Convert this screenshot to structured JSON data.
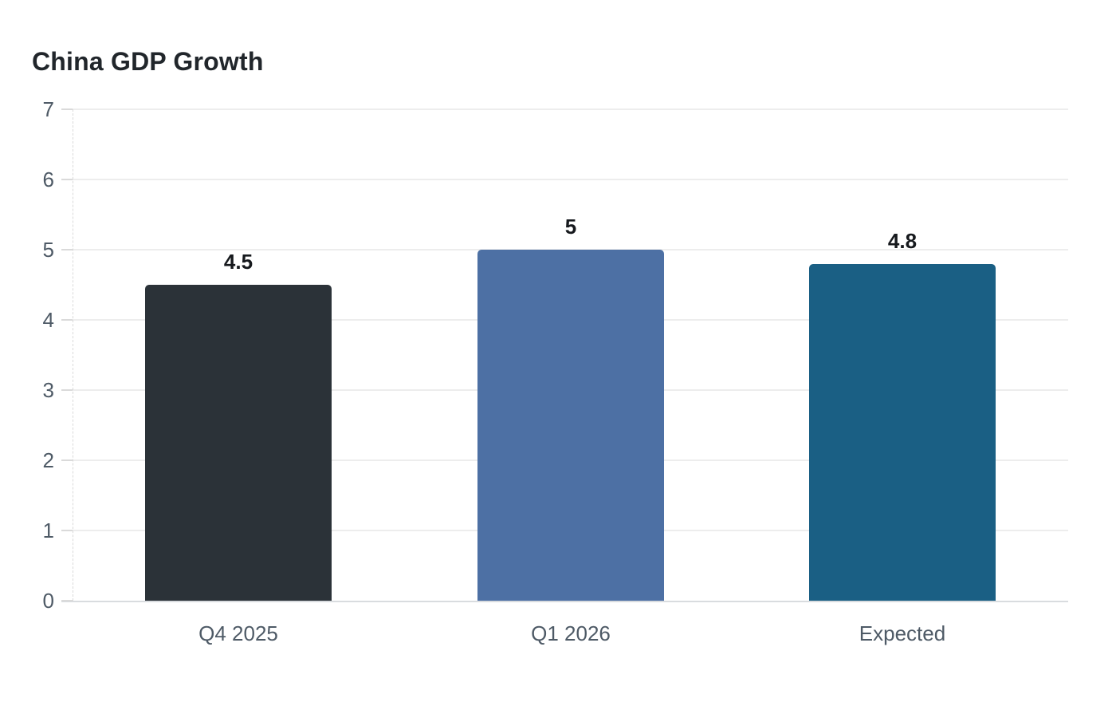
{
  "chart_data": {
    "type": "bar",
    "title": "China GDP Growth",
    "categories": [
      "Q4 2025",
      "Q1 2026",
      "Expected"
    ],
    "values": [
      4.5,
      5,
      4.8
    ],
    "value_labels": [
      "4.5",
      "5",
      "4.8"
    ],
    "bar_colors": [
      "#2b3238",
      "#4d70a4",
      "#1a5f84"
    ],
    "xlabel": "",
    "ylabel": "",
    "ylim": [
      0,
      7
    ],
    "yticks": [
      0,
      1,
      2,
      3,
      4,
      5,
      6,
      7
    ],
    "grid": true,
    "legend": false,
    "value_label_position": "above-bar",
    "colors": {
      "background": "#ffffff",
      "title_text": "#21262b",
      "tick_label_text": "#4e5a66",
      "category_label_text": "#4e5a66",
      "value_label_text": "#16191d",
      "grid_line": "#ededed",
      "baseline": "#d9dcdf",
      "axis_tick": "#dadada",
      "axis_dashed_line": "#d9d9d9"
    }
  }
}
